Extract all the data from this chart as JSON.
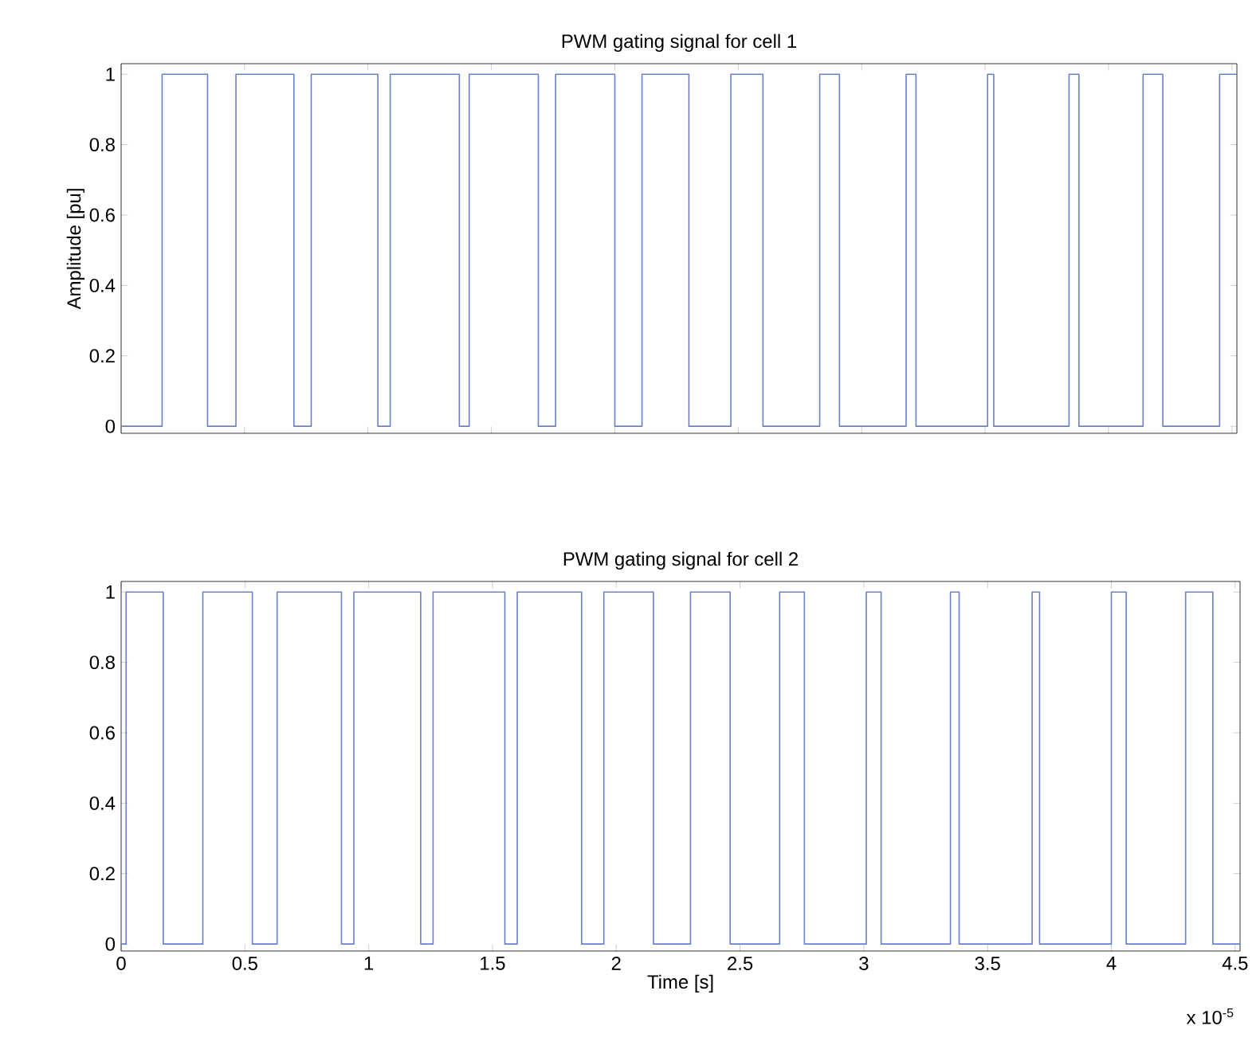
{
  "chart_data": [
    {
      "type": "step",
      "title": "PWM gating signal for cell 1",
      "ylabel": "Amplitude [pu]",
      "x": [
        0,
        0.166,
        0.35,
        0.465,
        0.7,
        0.77,
        1.04,
        1.09,
        1.37,
        1.41,
        1.69,
        1.76,
        2.0,
        2.11,
        2.3,
        2.47,
        2.6,
        2.83,
        2.91,
        3.18,
        3.22,
        3.51,
        3.535,
        3.84,
        3.88,
        4.14,
        4.22,
        4.45,
        4.52
      ],
      "values": [
        0,
        1,
        0,
        1,
        0,
        1,
        0,
        1,
        0,
        1,
        0,
        1,
        0,
        1,
        0,
        1,
        0,
        1,
        0,
        1,
        0,
        1,
        0,
        1,
        0,
        1,
        0,
        1,
        1
      ],
      "color": "#6a80c8",
      "xlim": [
        0,
        4.52
      ],
      "ylim": [
        -0.02,
        1.03
      ],
      "xticks": [
        0,
        0.5,
        1,
        1.5,
        2,
        2.5,
        3,
        3.5,
        4,
        4.5
      ],
      "yticks": [
        0,
        0.2,
        0.4,
        0.6,
        0.8,
        1
      ],
      "tick_labels": "y",
      "grid": false
    },
    {
      "type": "step",
      "title": "PWM gating signal for cell 2",
      "xlabel": "Time [s]",
      "x": [
        0,
        0.02,
        0.17,
        0.33,
        0.53,
        0.63,
        0.89,
        0.94,
        1.21,
        1.26,
        1.55,
        1.6,
        1.86,
        1.95,
        2.15,
        2.3,
        2.46,
        2.66,
        2.76,
        3.01,
        3.07,
        3.35,
        3.385,
        3.68,
        3.71,
        4.0,
        4.06,
        4.3,
        4.41,
        4.52
      ],
      "values": [
        0,
        1,
        0,
        1,
        0,
        1,
        0,
        1,
        0,
        1,
        0,
        1,
        0,
        1,
        0,
        1,
        0,
        1,
        0,
        1,
        0,
        1,
        0,
        1,
        0,
        1,
        0,
        1,
        0,
        0
      ],
      "color": "#6a80c8",
      "xlim": [
        0,
        4.52
      ],
      "ylim": [
        -0.02,
        1.03
      ],
      "xticks": [
        0,
        0.5,
        1,
        1.5,
        2,
        2.5,
        3,
        3.5,
        4,
        4.5
      ],
      "yticks": [
        0,
        0.2,
        0.4,
        0.6,
        0.8,
        1
      ],
      "grid": false,
      "annotations": [
        "x 10$^{-5}$"
      ]
    }
  ]
}
